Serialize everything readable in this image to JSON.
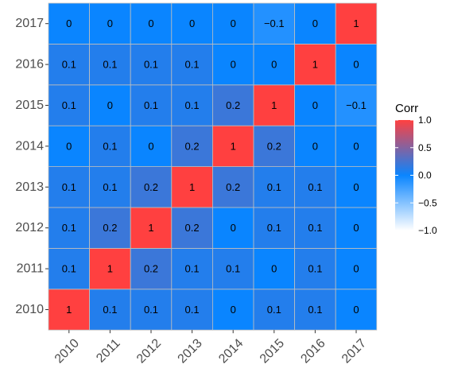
{
  "chart_data": {
    "type": "heatmap",
    "x_labels": [
      "2010",
      "2011",
      "2012",
      "2013",
      "2014",
      "2015",
      "2016",
      "2017"
    ],
    "y_labels": [
      "2010",
      "2011",
      "2012",
      "2013",
      "2014",
      "2015",
      "2016",
      "2017"
    ],
    "matrix": [
      [
        "1",
        "0.1",
        "0.1",
        "0.1",
        "0",
        "0.1",
        "0.1",
        "0"
      ],
      [
        "0.1",
        "1",
        "0.2",
        "0.1",
        "0.1",
        "0",
        "0.1",
        "0"
      ],
      [
        "0.1",
        "0.2",
        "1",
        "0.2",
        "0",
        "0.1",
        "0.1",
        "0"
      ],
      [
        "0.1",
        "0.1",
        "0.2",
        "1",
        "0.2",
        "0.1",
        "0.1",
        "0"
      ],
      [
        "0",
        "0.1",
        "0",
        "0.2",
        "1",
        "0.2",
        "0",
        "0"
      ],
      [
        "0.1",
        "0",
        "0.1",
        "0.1",
        "0.2",
        "1",
        "0",
        "−0.1"
      ],
      [
        "0.1",
        "0.1",
        "0.1",
        "0.1",
        "0",
        "0",
        "1",
        "0"
      ],
      [
        "0",
        "0",
        "0",
        "0",
        "0",
        "−0.1",
        "0",
        "1"
      ]
    ],
    "color_scale": {
      "low": "#ffffff",
      "mid": "#0a85ff",
      "high": "#ff4040",
      "limits": [
        -1,
        1
      ]
    },
    "legend": {
      "title": "Corr",
      "ticks": [
        "1.0",
        "0.5",
        "0.0",
        "−0.5",
        "−1.0"
      ],
      "placement": "right"
    },
    "grid_color": "#bfbfbf"
  }
}
